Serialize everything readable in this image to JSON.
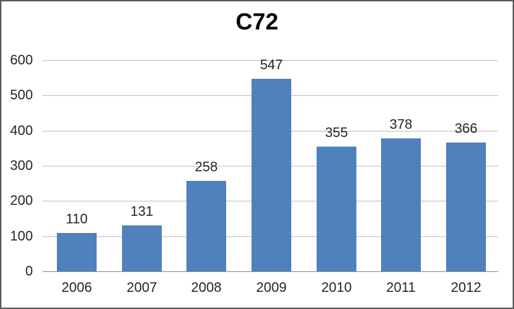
{
  "chart_data": {
    "type": "bar",
    "title": "C72",
    "categories": [
      "2006",
      "2007",
      "2008",
      "2009",
      "2010",
      "2011",
      "2012"
    ],
    "values": [
      110,
      131,
      258,
      547,
      355,
      378,
      366
    ],
    "xlabel": "",
    "ylabel": "",
    "ylim": [
      0,
      600
    ],
    "ytick_step": 100,
    "yticks": [
      0,
      100,
      200,
      300,
      400,
      500,
      600
    ],
    "grid": "horizontal",
    "legend": "none",
    "data_labels": true,
    "colors": {
      "bar": "#4F81BD",
      "gridline": "#BFBFBF",
      "axis_line": "#8C8C8C",
      "text": "#262626",
      "title_text": "#000000",
      "frame_border": "#595959",
      "background": "#FFFFFF"
    }
  }
}
